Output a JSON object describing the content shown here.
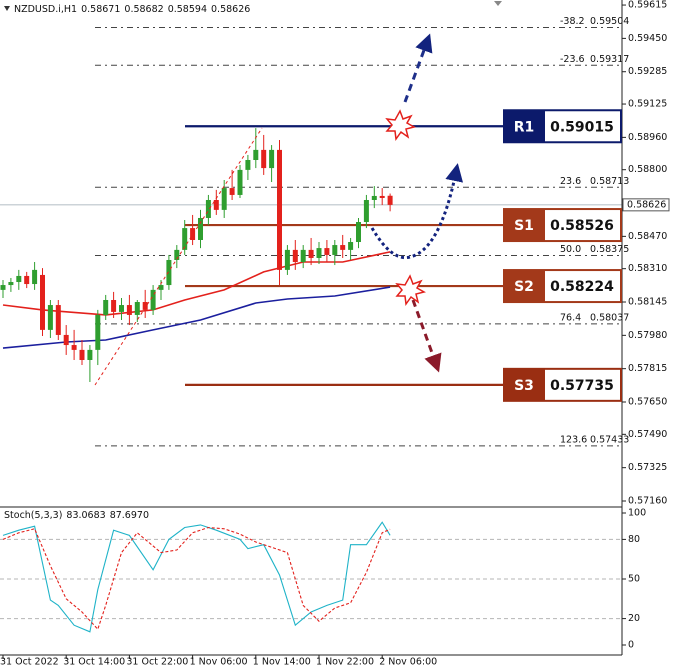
{
  "chart_data": {
    "type": "candlestick",
    "title": "NZDUSD.i,H1",
    "categories": [
      "31 Oct 2022",
      null,
      null,
      null,
      null,
      null,
      null,
      null,
      "31 Oct 14:00",
      null,
      null,
      null,
      null,
      null,
      null,
      null,
      "31 Oct 22:00",
      null,
      null,
      null,
      null,
      null,
      null,
      null,
      "1 Nov 06:00",
      null,
      null,
      null,
      null,
      null,
      null,
      null,
      "1 Nov 14:00",
      null,
      null,
      null,
      null,
      null,
      null,
      null,
      "1 Nov 22:00",
      null,
      null,
      null,
      null,
      null,
      null,
      null,
      "2 Nov 06:00",
      null
    ],
    "open": [
      0.58205,
      0.58229,
      0.58244,
      0.58274,
      0.58234,
      0.58279,
      0.58007,
      0.5813,
      0.57982,
      0.57932,
      0.57908,
      0.57858,
      0.57908,
      0.58081,
      0.58155,
      0.58096,
      0.5813,
      0.58081,
      0.58145,
      0.58106,
      0.58205,
      0.58229,
      0.58353,
      0.58403,
      0.58511,
      0.58452,
      0.58561,
      0.5865,
      0.58601,
      0.58709,
      0.58675,
      0.58799,
      0.58848,
      0.58898,
      0.58808,
      0.58898,
      0.58304,
      0.58403,
      0.58343,
      0.58403,
      0.58363,
      0.58412,
      0.58378,
      0.58427,
      0.58403,
      0.58442,
      0.58541,
      0.5865,
      0.5867,
      0.58671
    ],
    "high": [
      0.58254,
      0.58264,
      0.58304,
      0.58294,
      0.58343,
      0.58313,
      0.58155,
      0.58155,
      0.58031,
      0.58007,
      0.57957,
      0.57932,
      0.58106,
      0.5818,
      0.58195,
      0.58165,
      0.5818,
      0.58155,
      0.58205,
      0.58229,
      0.58254,
      0.58378,
      0.58427,
      0.58551,
      0.58576,
      0.58601,
      0.58675,
      0.587,
      0.58749,
      0.58799,
      0.58823,
      0.58873,
      0.59006,
      0.58972,
      0.58922,
      0.58947,
      0.58427,
      0.58452,
      0.58427,
      0.58462,
      0.58442,
      0.58452,
      0.58452,
      0.58477,
      0.58462,
      0.58561,
      0.58675,
      0.58719,
      0.58709,
      0.58682
    ],
    "low": [
      0.58165,
      0.58195,
      0.58205,
      0.58214,
      0.58205,
      0.57977,
      0.57967,
      0.57957,
      0.57883,
      0.57858,
      0.57833,
      0.57749,
      0.57833,
      0.58056,
      0.58066,
      0.58056,
      0.58031,
      0.58046,
      0.58066,
      0.58081,
      0.58155,
      0.58205,
      0.58313,
      0.58378,
      0.58427,
      0.58412,
      0.58526,
      0.58576,
      0.58561,
      0.5865,
      0.5866,
      0.58749,
      0.58808,
      0.58774,
      0.58739,
      0.58229,
      0.58279,
      0.58304,
      0.58313,
      0.58328,
      0.58333,
      0.58343,
      0.58328,
      0.58363,
      0.58353,
      0.58412,
      0.58511,
      0.5861,
      0.58625,
      0.58594
    ],
    "close": [
      0.58229,
      0.58244,
      0.58274,
      0.58234,
      0.58304,
      0.58007,
      0.5813,
      0.57982,
      0.57932,
      0.57908,
      0.57858,
      0.57908,
      0.58081,
      0.58155,
      0.58096,
      0.5813,
      0.58081,
      0.58145,
      0.58106,
      0.58205,
      0.58229,
      0.58353,
      0.58403,
      0.58511,
      0.58452,
      0.58561,
      0.5865,
      0.58601,
      0.58709,
      0.58675,
      0.58799,
      0.58848,
      0.58898,
      0.58808,
      0.58898,
      0.58304,
      0.58403,
      0.58343,
      0.58403,
      0.58363,
      0.58412,
      0.58378,
      0.58427,
      0.58403,
      0.58442,
      0.58541,
      0.5865,
      0.5867,
      0.5866,
      0.58626
    ],
    "up_color": "#2f9e2f",
    "down_color": "#e3211c",
    "ylim": [
      0.5716,
      0.5964
    ],
    "yticks": [
      0.59615,
      {
        "value": 0.5945,
        "label": "0.59450"
      },
      0.59285,
      0.59125,
      {
        "value": 0.5896,
        "label": "0.58960"
      },
      {
        "value": 0.588,
        "label": "0.58800"
      },
      {
        "value": 0.5847,
        "label": "0.58470"
      },
      {
        "value": 0.5831,
        "label": "0.58310"
      },
      0.58145,
      {
        "value": 0.5798,
        "label": "0.57980"
      },
      0.57815,
      {
        "value": 0.5765,
        "label": "0.57650"
      },
      {
        "value": 0.5749,
        "label": "0.57490"
      },
      0.57325,
      {
        "value": 0.5716,
        "label": "0.57160"
      }
    ],
    "moving_averages": [
      {
        "color": "#e3211c",
        "x": [
          0,
          5,
          13,
          19,
          23,
          28,
          33,
          38,
          43,
          49
        ],
        "values": [
          0.5813,
          0.58106,
          0.58081,
          0.58106,
          0.58155,
          0.58205,
          0.58294,
          0.58343,
          0.58343,
          0.58393
        ]
      },
      {
        "color": "#1b1f9e",
        "x": [
          0,
          8,
          13,
          19,
          25,
          32,
          36,
          42,
          49
        ],
        "values": [
          0.57917,
          0.57947,
          0.57957,
          0.58007,
          0.58056,
          0.5814,
          0.5816,
          0.58175,
          0.58219
        ]
      }
    ],
    "fib_levels": [
      {
        "label": "-38.2",
        "value": 0.59504
      },
      {
        "label": "-23.6",
        "value": 0.59317
      },
      {
        "label": "23.6",
        "value": 0.58713
      },
      {
        "label": "50.0",
        "value": 0.58375
      },
      {
        "label": "76.4",
        "value": 0.58037
      },
      {
        "label": "123.6",
        "value": 0.57433
      }
    ],
    "levels": [
      {
        "name": "R1",
        "value": 0.59015,
        "color": "#0c1a6b"
      },
      {
        "name": "S1",
        "value": 0.58526,
        "color": "#a3391a"
      },
      {
        "name": "S2",
        "value": 0.58224,
        "color": "#a3391a"
      },
      {
        "name": "S3",
        "value": 0.57735,
        "color": "#9a2e12"
      }
    ],
    "stochastic": {
      "title": "Stoch(5,3,3)",
      "ylim": [
        0,
        100
      ],
      "yticks": [
        100,
        80,
        50,
        20,
        0
      ],
      "main": {
        "color": "#1fb3c8",
        "x": [
          0,
          2,
          4,
          6,
          7,
          9,
          11,
          12,
          14,
          16,
          19,
          21,
          23,
          25,
          27,
          30,
          31,
          33,
          35,
          37,
          39,
          41,
          43,
          44,
          46,
          48,
          49
        ],
        "values": [
          83,
          87,
          90,
          34,
          30,
          15,
          10,
          42,
          87,
          83,
          57,
          80,
          89,
          91,
          87,
          80,
          73,
          76,
          53,
          15,
          25,
          30,
          34,
          76,
          76,
          93,
          83.0683
        ]
      },
      "signal": {
        "color": "#e3211c",
        "x": [
          0,
          2,
          4,
          6,
          8,
          10,
          12,
          13,
          15,
          17,
          20,
          22,
          24,
          26,
          28,
          30,
          32,
          34,
          36,
          38,
          40,
          42,
          44,
          46,
          48,
          49
        ],
        "values": [
          80,
          85,
          88,
          60,
          35,
          25,
          12,
          30,
          70,
          85,
          70,
          72,
          85,
          89,
          88,
          84,
          78,
          74,
          70,
          30,
          18,
          28,
          32,
          55,
          85,
          87.697
        ],
        "value_labels": [
          null,
          null,
          null,
          null,
          null,
          null,
          null,
          null,
          null,
          null,
          null,
          null,
          null,
          null,
          null,
          null,
          null,
          null,
          null,
          null,
          null,
          null,
          null,
          null,
          null,
          "87.6970"
        ]
      }
    }
  }
}
